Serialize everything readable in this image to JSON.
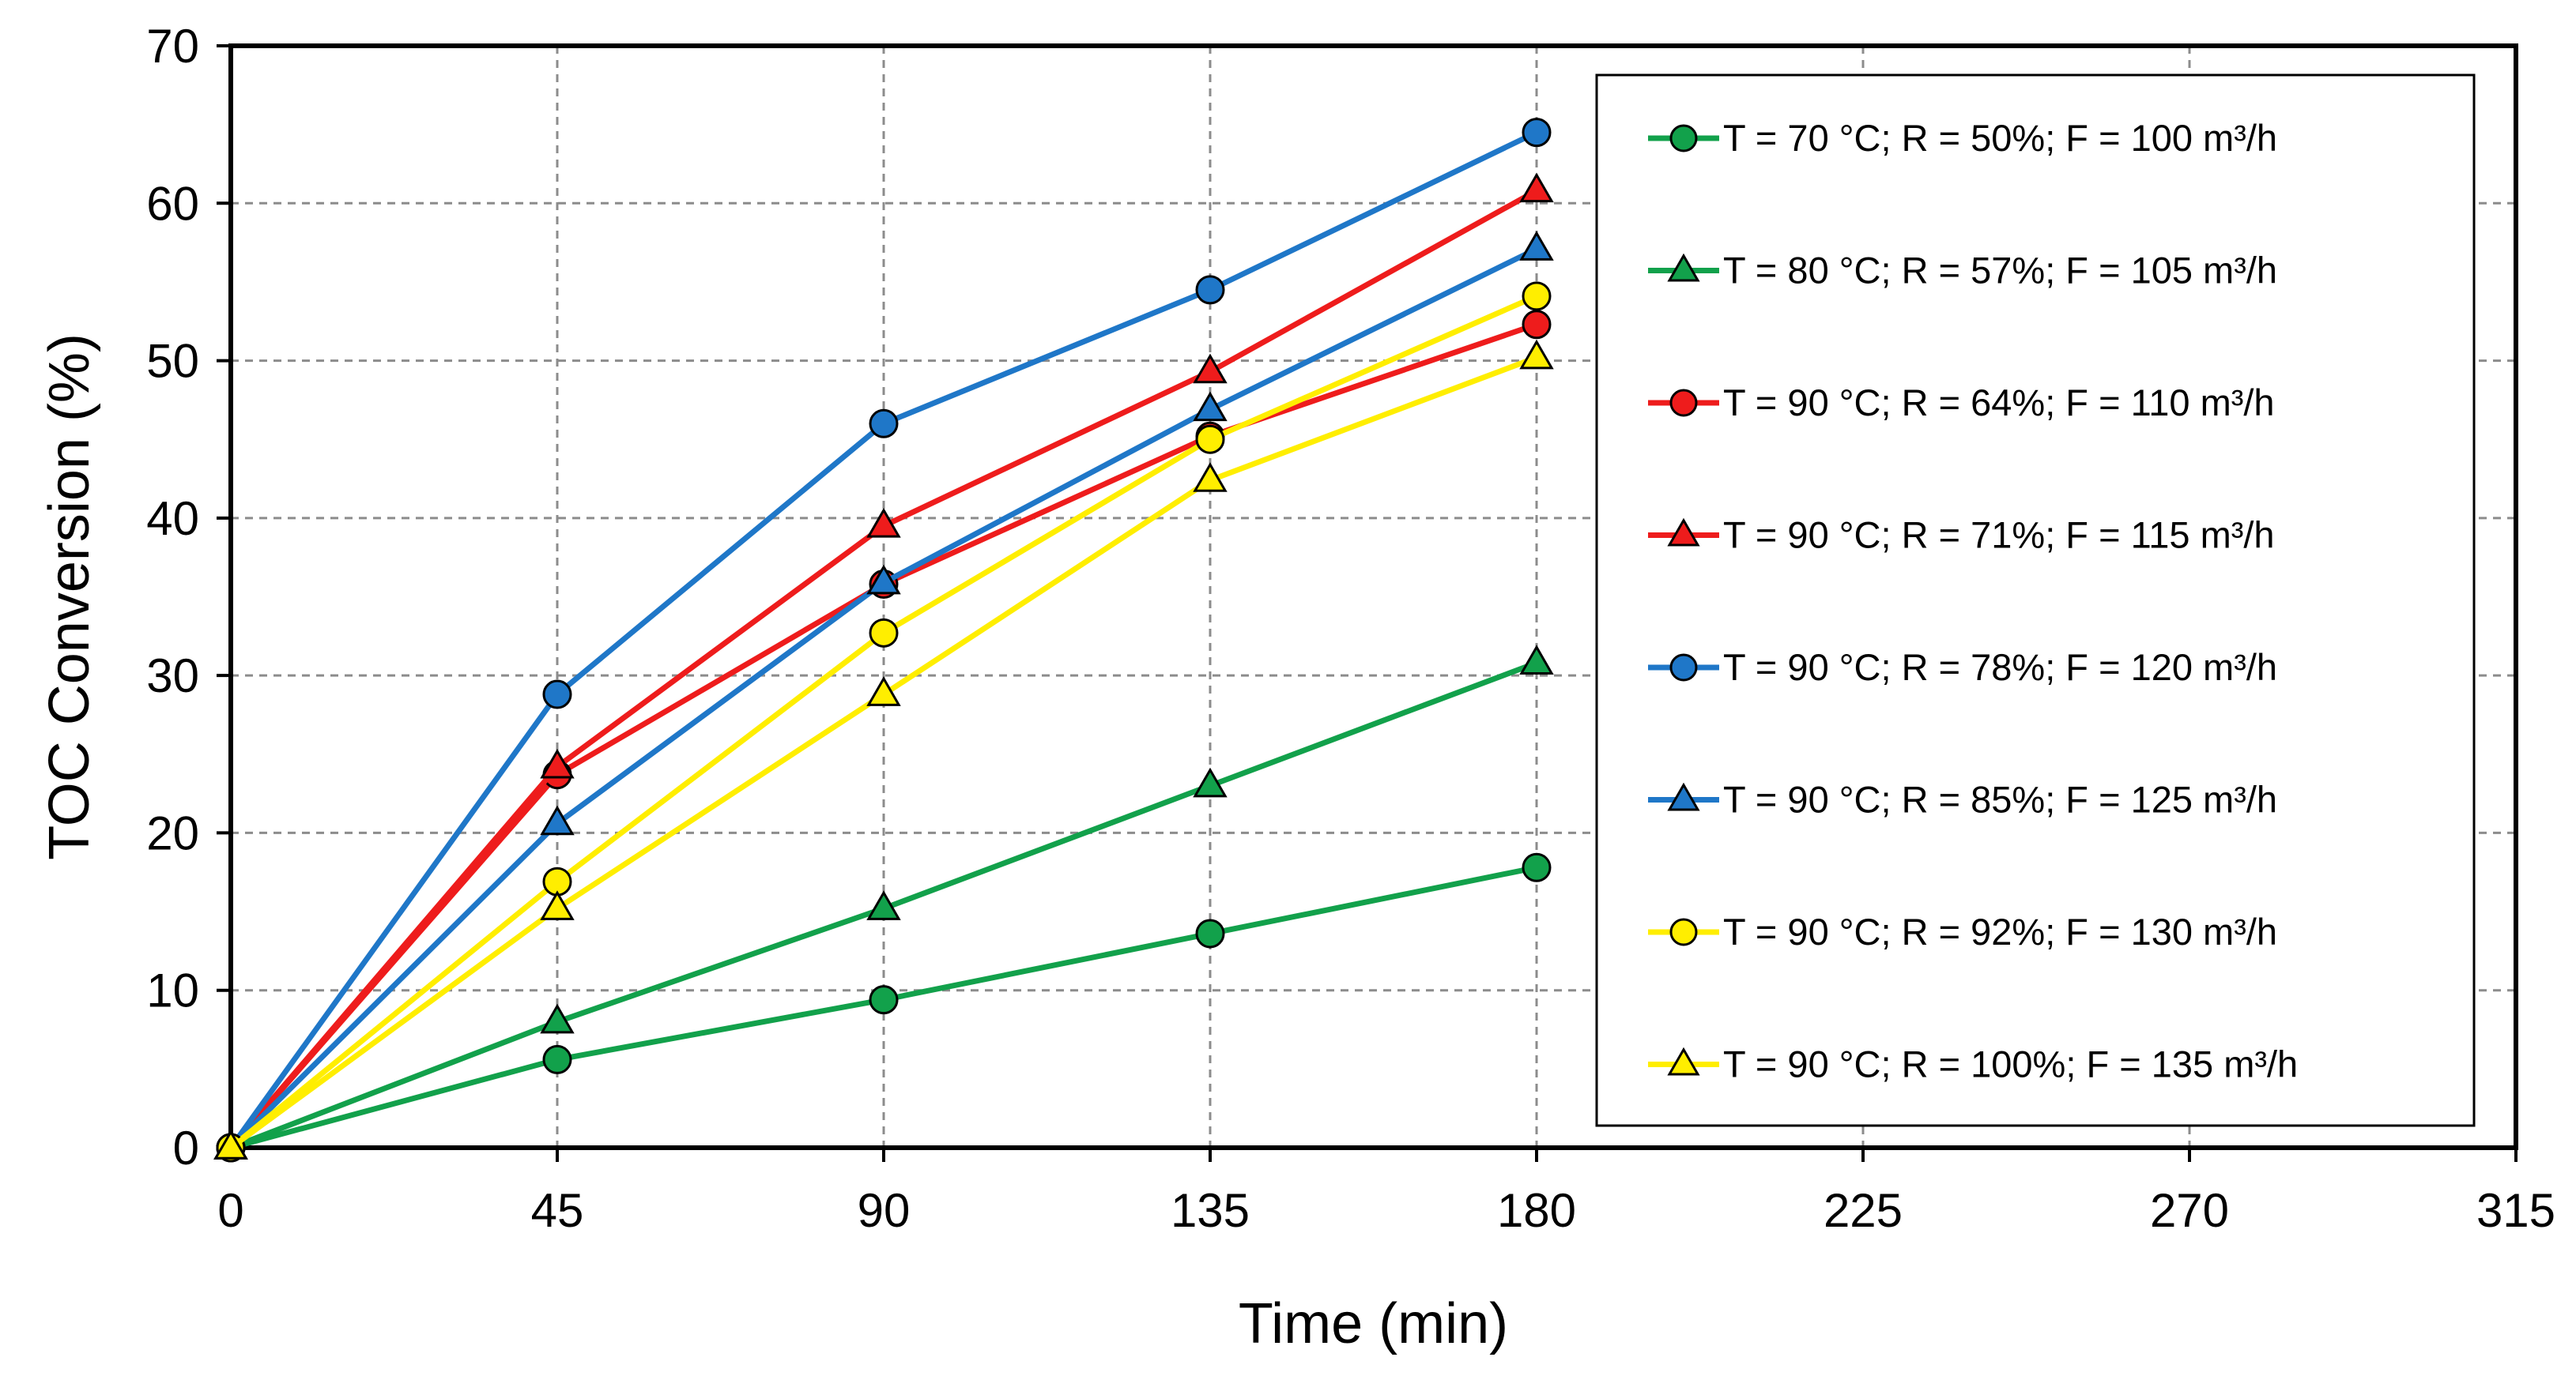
{
  "chart_data": {
    "type": "line",
    "title": "",
    "xlabel": "Time (min)",
    "ylabel": "TOC Conversion (%)",
    "xlim": [
      0,
      315
    ],
    "ylim": [
      0,
      70
    ],
    "x_ticks": [
      "0",
      "45",
      "90",
      "135",
      "180",
      "225",
      "270",
      "315"
    ],
    "y_ticks": [
      "0",
      "10",
      "20",
      "30",
      "40",
      "50",
      "60",
      "70"
    ],
    "grid": true,
    "legend_position": "right inside plot",
    "x": [
      0,
      45,
      90,
      135,
      180
    ],
    "series": [
      {
        "name": "T = 70 °C; R = 50%; F = 100 m³/h",
        "color": "#12a14b",
        "marker": "circle",
        "values": [
          0,
          5.6,
          9.4,
          13.6,
          17.8
        ]
      },
      {
        "name": "T = 80 °C; R = 57%; F = 105 m³/h",
        "color": "#12a14b",
        "marker": "triangle",
        "values": [
          0,
          8.0,
          15.2,
          23.0,
          30.8
        ]
      },
      {
        "name": "T = 90 °C; R = 64%; F = 110 m³/h",
        "color": "#ee1c1c",
        "marker": "circle",
        "values": [
          0,
          23.7,
          35.8,
          45.2,
          52.3
        ]
      },
      {
        "name": "T = 90 °C; R = 71%; F = 115 m³/h",
        "color": "#ee1c1c",
        "marker": "triangle",
        "values": [
          0,
          24.2,
          39.5,
          49.3,
          60.8
        ]
      },
      {
        "name": "T = 90 °C; R = 78%; F = 120 m³/h",
        "color": "#1f77c8",
        "marker": "circle",
        "values": [
          0,
          28.8,
          46.0,
          54.5,
          64.5
        ]
      },
      {
        "name": "T = 90 °C; R = 85%; F = 125 m³/h",
        "color": "#1f77c8",
        "marker": "triangle",
        "values": [
          0,
          20.6,
          35.9,
          46.9,
          57.1
        ]
      },
      {
        "name": "T = 90 °C; R = 92%; F = 130 m³/h",
        "color": "#ffee00",
        "marker": "circle",
        "values": [
          0,
          16.9,
          32.7,
          45.0,
          54.1
        ]
      },
      {
        "name": "T = 90 °C; R = 100%; F = 135 m³/h",
        "color": "#ffee00",
        "marker": "triangle",
        "values": [
          0,
          15.2,
          28.8,
          42.4,
          50.2
        ]
      }
    ]
  }
}
